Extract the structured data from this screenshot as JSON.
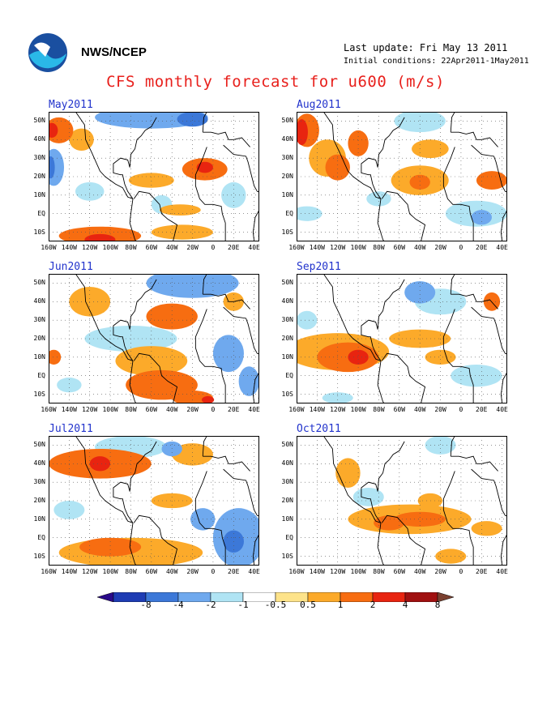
{
  "header": {
    "org": "NWS/NCEP",
    "last_update": "Last update: Fri May 13 2011",
    "initial_conditions": "Initial conditions: 22Apr2011-1May2011",
    "title": "CFS monthly forecast for u600 (m/s)"
  },
  "map_axes": {
    "lat_labels": [
      "50N",
      "40N",
      "30N",
      "20N",
      "10N",
      "EQ",
      "10S"
    ],
    "lon_labels": [
      "160W",
      "140W",
      "120W",
      "100W",
      "80W",
      "60W",
      "40W",
      "20W",
      "0",
      "20E",
      "40E"
    ]
  },
  "panels": [
    {
      "title": "May2011",
      "blobs": [
        {
          "lat": 45,
          "lon": -150,
          "rx": 14,
          "ry": 7,
          "v": 2
        },
        {
          "lat": 45,
          "lon": -157,
          "rx": 6,
          "ry": 4,
          "v": 4
        },
        {
          "lat": 25,
          "lon": -155,
          "rx": 10,
          "ry": 10,
          "v": -2
        },
        {
          "lat": 25,
          "lon": -158,
          "rx": 4,
          "ry": 6,
          "v": -4
        },
        {
          "lat": 52,
          "lon": -60,
          "rx": 55,
          "ry": 6,
          "v": -2
        },
        {
          "lat": 51,
          "lon": -20,
          "rx": 15,
          "ry": 4,
          "v": -4
        },
        {
          "lat": 24,
          "lon": -8,
          "rx": 22,
          "ry": 6,
          "v": 2
        },
        {
          "lat": 25,
          "lon": -8,
          "rx": 8,
          "ry": 3,
          "v": 4
        },
        {
          "lat": 40,
          "lon": -128,
          "rx": 12,
          "ry": 6,
          "v": 1
        },
        {
          "lat": 18,
          "lon": -60,
          "rx": 22,
          "ry": 4,
          "v": 1
        },
        {
          "lat": 12,
          "lon": -120,
          "rx": 14,
          "ry": 5,
          "v": -1
        },
        {
          "lat": 5,
          "lon": -50,
          "rx": 10,
          "ry": 5,
          "v": -1
        },
        {
          "lat": 2,
          "lon": -32,
          "rx": 20,
          "ry": 3,
          "v": 1
        },
        {
          "lat": -12,
          "lon": -110,
          "rx": 40,
          "ry": 5,
          "v": 2
        },
        {
          "lat": -14,
          "lon": -110,
          "rx": 15,
          "ry": 3,
          "v": 4
        },
        {
          "lat": -10,
          "lon": -30,
          "rx": 30,
          "ry": 4,
          "v": 1
        },
        {
          "lat": 10,
          "lon": 20,
          "rx": 12,
          "ry": 7,
          "v": -1
        }
      ]
    },
    {
      "title": "Aug2011",
      "blobs": [
        {
          "lat": 44,
          "lon": -155,
          "rx": 6,
          "ry": 7,
          "v": 4
        },
        {
          "lat": 45,
          "lon": -150,
          "rx": 12,
          "ry": 9,
          "v": 2
        },
        {
          "lat": 25,
          "lon": -120,
          "rx": 12,
          "ry": 7,
          "v": 2
        },
        {
          "lat": 38,
          "lon": -100,
          "rx": 10,
          "ry": 7,
          "v": 2
        },
        {
          "lat": 30,
          "lon": -130,
          "rx": 18,
          "ry": 10,
          "v": 1
        },
        {
          "lat": 50,
          "lon": -40,
          "rx": 25,
          "ry": 6,
          "v": -1
        },
        {
          "lat": 35,
          "lon": -30,
          "rx": 18,
          "ry": 5,
          "v": 1
        },
        {
          "lat": 18,
          "lon": -40,
          "rx": 28,
          "ry": 8,
          "v": 1
        },
        {
          "lat": 17,
          "lon": -40,
          "rx": 10,
          "ry": 4,
          "v": 2
        },
        {
          "lat": 18,
          "lon": 30,
          "rx": 15,
          "ry": 5,
          "v": 2
        },
        {
          "lat": 0,
          "lon": 15,
          "rx": 30,
          "ry": 7,
          "v": -1
        },
        {
          "lat": -2,
          "lon": 20,
          "rx": 10,
          "ry": 4,
          "v": -2
        },
        {
          "lat": 8,
          "lon": -80,
          "rx": 12,
          "ry": 4,
          "v": -1
        },
        {
          "lat": 0,
          "lon": -150,
          "rx": 15,
          "ry": 4,
          "v": -1
        }
      ]
    },
    {
      "title": "Jun2011",
      "blobs": [
        {
          "lat": 50,
          "lon": -20,
          "rx": 45,
          "ry": 8,
          "v": -2
        },
        {
          "lat": 40,
          "lon": -120,
          "rx": 20,
          "ry": 8,
          "v": 1
        },
        {
          "lat": 32,
          "lon": -40,
          "rx": 25,
          "ry": 7,
          "v": 2
        },
        {
          "lat": 20,
          "lon": -80,
          "rx": 45,
          "ry": 7,
          "v": -1
        },
        {
          "lat": 8,
          "lon": -60,
          "rx": 35,
          "ry": 8,
          "v": 1
        },
        {
          "lat": -5,
          "lon": -50,
          "rx": 35,
          "ry": 8,
          "v": 2
        },
        {
          "lat": -12,
          "lon": -20,
          "rx": 20,
          "ry": 4,
          "v": 2
        },
        {
          "lat": -13,
          "lon": -5,
          "rx": 6,
          "ry": 2,
          "v": 4
        },
        {
          "lat": 10,
          "lon": -155,
          "rx": 7,
          "ry": 4,
          "v": 2
        },
        {
          "lat": 12,
          "lon": 15,
          "rx": 15,
          "ry": 10,
          "v": -2
        },
        {
          "lat": -3,
          "lon": 35,
          "rx": 10,
          "ry": 8,
          "v": -2
        },
        {
          "lat": 40,
          "lon": 20,
          "rx": 10,
          "ry": 5,
          "v": 1
        },
        {
          "lat": -5,
          "lon": -140,
          "rx": 12,
          "ry": 4,
          "v": -1
        }
      ]
    },
    {
      "title": "Sep2011",
      "blobs": [
        {
          "lat": 10,
          "lon": -110,
          "rx": 30,
          "ry": 8,
          "v": 2
        },
        {
          "lat": 10,
          "lon": -100,
          "rx": 10,
          "ry": 4,
          "v": 4
        },
        {
          "lat": 13,
          "lon": -120,
          "rx": 50,
          "ry": 10,
          "v": 1
        },
        {
          "lat": 45,
          "lon": -40,
          "rx": 15,
          "ry": 6,
          "v": -2
        },
        {
          "lat": 40,
          "lon": -20,
          "rx": 25,
          "ry": 7,
          "v": -1
        },
        {
          "lat": 20,
          "lon": -40,
          "rx": 30,
          "ry": 5,
          "v": 1
        },
        {
          "lat": 40,
          "lon": 30,
          "rx": 8,
          "ry": 5,
          "v": 2
        },
        {
          "lat": 0,
          "lon": 15,
          "rx": 25,
          "ry": 6,
          "v": -1
        },
        {
          "lat": 10,
          "lon": -20,
          "rx": 15,
          "ry": 4,
          "v": 1
        },
        {
          "lat": 30,
          "lon": -150,
          "rx": 10,
          "ry": 5,
          "v": -1
        },
        {
          "lat": -12,
          "lon": -120,
          "rx": 15,
          "ry": 3,
          "v": -1
        }
      ]
    },
    {
      "title": "Jul2011",
      "blobs": [
        {
          "lat": 40,
          "lon": -110,
          "rx": 50,
          "ry": 8,
          "v": 2
        },
        {
          "lat": 40,
          "lon": -110,
          "rx": 10,
          "ry": 4,
          "v": 4
        },
        {
          "lat": 49,
          "lon": -80,
          "rx": 35,
          "ry": 6,
          "v": -1
        },
        {
          "lat": 48,
          "lon": -40,
          "rx": 10,
          "ry": 4,
          "v": -2
        },
        {
          "lat": 45,
          "lon": -20,
          "rx": 20,
          "ry": 6,
          "v": 1
        },
        {
          "lat": 10,
          "lon": -10,
          "rx": 12,
          "ry": 6,
          "v": -2
        },
        {
          "lat": 0,
          "lon": 25,
          "rx": 25,
          "ry": 16,
          "v": -2
        },
        {
          "lat": -2,
          "lon": 20,
          "rx": 10,
          "ry": 6,
          "v": -4
        },
        {
          "lat": -8,
          "lon": -80,
          "rx": 70,
          "ry": 8,
          "v": 1
        },
        {
          "lat": -5,
          "lon": -100,
          "rx": 30,
          "ry": 5,
          "v": 2
        },
        {
          "lat": 15,
          "lon": -140,
          "rx": 15,
          "ry": 5,
          "v": -1
        },
        {
          "lat": 20,
          "lon": -40,
          "rx": 20,
          "ry": 4,
          "v": 1
        }
      ]
    },
    {
      "title": "Oct2011",
      "blobs": [
        {
          "lat": 10,
          "lon": -50,
          "rx": 60,
          "ry": 8,
          "v": 1
        },
        {
          "lat": 10,
          "lon": -40,
          "rx": 25,
          "ry": 4,
          "v": 2
        },
        {
          "lat": 8,
          "lon": -70,
          "rx": 15,
          "ry": 4,
          "v": 2
        },
        {
          "lat": 22,
          "lon": -90,
          "rx": 15,
          "ry": 5,
          "v": -1
        },
        {
          "lat": 35,
          "lon": -110,
          "rx": 12,
          "ry": 8,
          "v": 1
        },
        {
          "lat": 20,
          "lon": -30,
          "rx": 12,
          "ry": 4,
          "v": 1
        },
        {
          "lat": 5,
          "lon": 25,
          "rx": 15,
          "ry": 4,
          "v": 1
        },
        {
          "lat": -10,
          "lon": -10,
          "rx": 15,
          "ry": 4,
          "v": 1
        },
        {
          "lat": 50,
          "lon": -20,
          "rx": 15,
          "ry": 5,
          "v": -1
        }
      ]
    }
  ],
  "colorbar": {
    "labels": [
      "-8",
      "-4",
      "-2",
      "-1",
      "-0.5",
      "0.5",
      "1",
      "2",
      "4",
      "8"
    ],
    "colors": [
      "#1e3cb4",
      "#3c78d8",
      "#6fa9ee",
      "#b0e4f4",
      "#ffffff",
      "#fde38a",
      "#fcaa2a",
      "#f76d11",
      "#e82410",
      "#a01010"
    ],
    "low_arrow": "#2a0a8a",
    "high_arrow": "#7a4030"
  }
}
